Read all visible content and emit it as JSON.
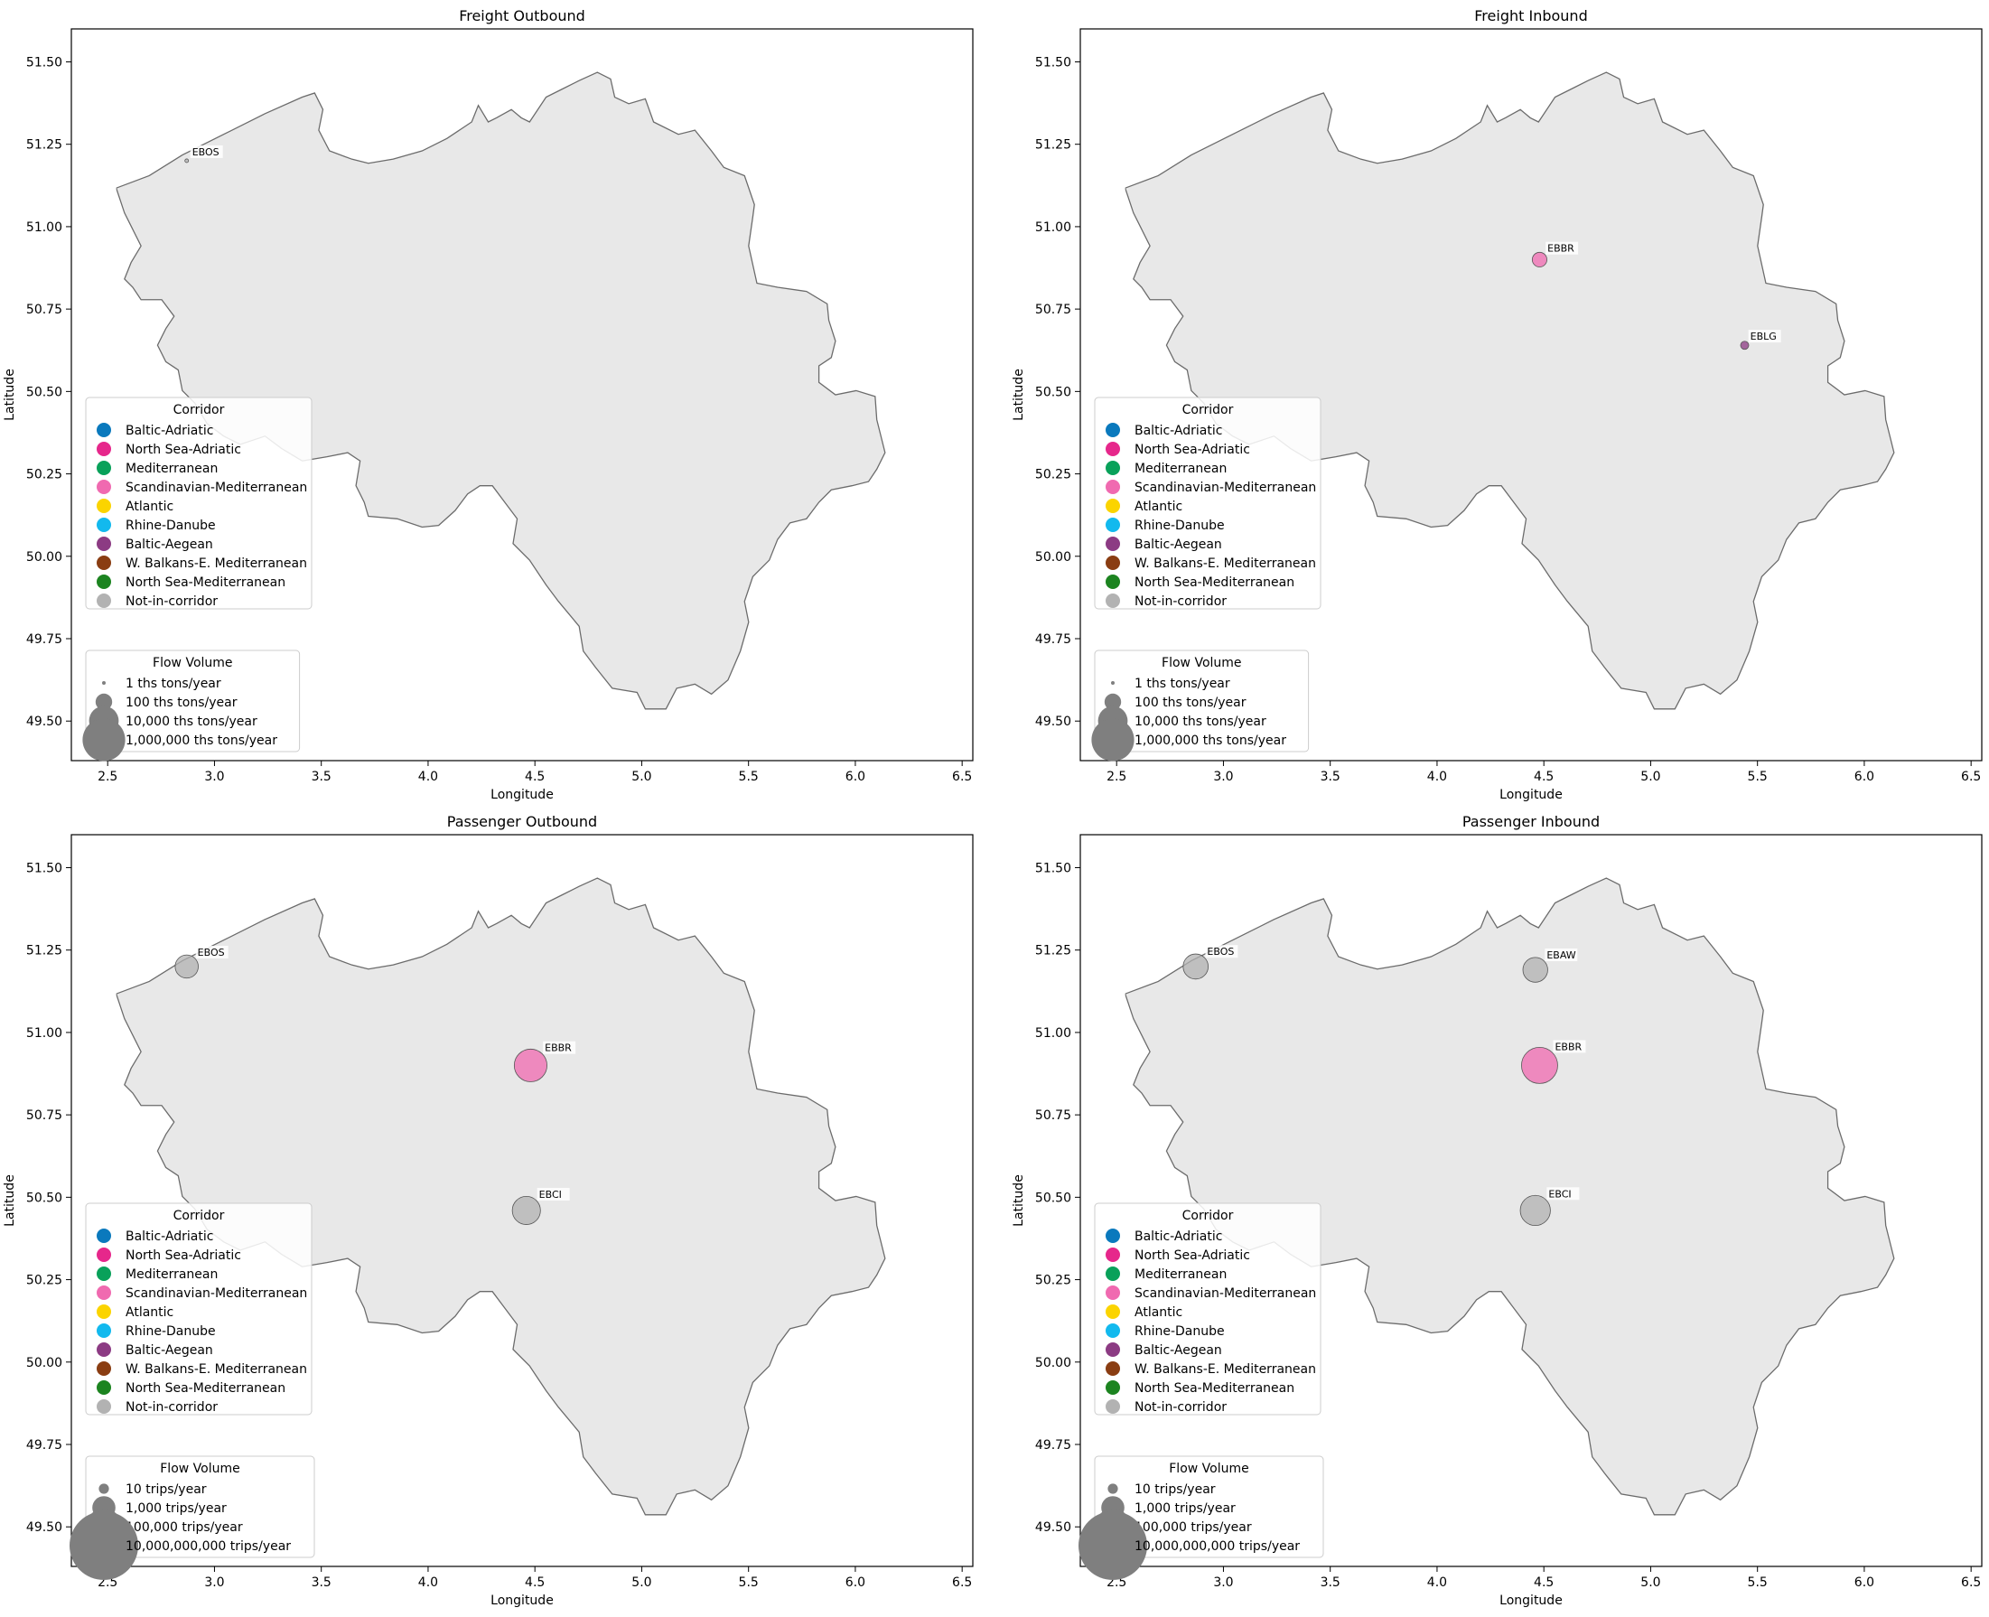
{
  "figure": {
    "xlabel": "Longitude",
    "ylabel": "Latitude",
    "x_ticks": [
      "2.5",
      "3.0",
      "3.5",
      "4.0",
      "4.5",
      "5.0",
      "5.5",
      "6.0",
      "6.5"
    ],
    "y_ticks": [
      "49.50",
      "49.75",
      "50.00",
      "50.25",
      "50.50",
      "50.75",
      "51.00",
      "51.25",
      "51.50"
    ],
    "corridor_legend_title": "Corridor",
    "flow_legend_title": "Flow Volume",
    "map_fill": "#e8e8e8",
    "map_stroke": "#6b6b6b"
  },
  "corridors": [
    {
      "name": "Baltic-Adriatic",
      "color": "#0a79bd"
    },
    {
      "name": "North Sea-Adriatic",
      "color": "#e6278b"
    },
    {
      "name": "Mediterranean",
      "color": "#09a15a"
    },
    {
      "name": "Scandinavian-Mediterranean",
      "color": "#f06ab0"
    },
    {
      "name": "Atlantic",
      "color": "#fbd400"
    },
    {
      "name": "Rhine-Danube",
      "color": "#12b9ee"
    },
    {
      "name": "Baltic-Aegean",
      "color": "#8c3b83"
    },
    {
      "name": "W. Balkans-E. Mediterranean",
      "color": "#8a3d12"
    },
    {
      "name": "North Sea-Mediterranean",
      "color": "#1c8420"
    },
    {
      "name": "Not-in-corridor",
      "color": "#b2b2b2"
    }
  ],
  "chart_data": [
    {
      "type": "scatter",
      "title": "Freight Outbound",
      "xlabel": "Longitude",
      "ylabel": "Latitude",
      "xlim": [
        2.33,
        6.55
      ],
      "ylim": [
        49.38,
        51.6
      ],
      "points": [
        {
          "label": "EBOS",
          "lon": 2.87,
          "lat": 51.2,
          "corridor": "Not-in-corridor",
          "flow_volume": 1
        }
      ],
      "size_legend": [
        {
          "label": "1 ths tons/year",
          "value": 1
        },
        {
          "label": "100 ths tons/year",
          "value": 100
        },
        {
          "label": "10,000 ths tons/year",
          "value": 10000
        },
        {
          "label": "1,000,000 ths tons/year",
          "value": 1000000
        }
      ]
    },
    {
      "type": "scatter",
      "title": "Freight Inbound",
      "xlabel": "Longitude",
      "ylabel": "Latitude",
      "xlim": [
        2.33,
        6.55
      ],
      "ylim": [
        49.38,
        51.6
      ],
      "points": [
        {
          "label": "EBBR",
          "lon": 4.48,
          "lat": 50.9,
          "corridor": "Scandinavian-Mediterranean",
          "flow_volume": 50
        },
        {
          "label": "EBLG",
          "lon": 5.44,
          "lat": 50.64,
          "corridor": "Baltic-Aegean",
          "flow_volume": 5
        }
      ],
      "size_legend": [
        {
          "label": "1 ths tons/year",
          "value": 1
        },
        {
          "label": "100 ths tons/year",
          "value": 100
        },
        {
          "label": "10,000 ths tons/year",
          "value": 10000
        },
        {
          "label": "1,000,000 ths tons/year",
          "value": 1000000
        }
      ]
    },
    {
      "type": "scatter",
      "title": "Passenger Outbound",
      "xlabel": "Longitude",
      "ylabel": "Latitude",
      "xlim": [
        2.33,
        6.55
      ],
      "ylim": [
        49.38,
        51.6
      ],
      "points": [
        {
          "label": "EBOS",
          "lon": 2.87,
          "lat": 51.2,
          "corridor": "Not-in-corridor",
          "flow_volume": 1000
        },
        {
          "label": "EBBR",
          "lon": 4.48,
          "lat": 50.9,
          "corridor": "Scandinavian-Mediterranean",
          "flow_volume": 30000
        },
        {
          "label": "EBCI",
          "lon": 4.46,
          "lat": 50.46,
          "corridor": "Not-in-corridor",
          "flow_volume": 6000
        }
      ],
      "size_legend": [
        {
          "label": "10 trips/year",
          "value": 10
        },
        {
          "label": "1,000 trips/year",
          "value": 1000
        },
        {
          "label": "100,000 trips/year",
          "value": 100000
        },
        {
          "label": "10,000,000,000 trips/year",
          "value": 10000000000
        }
      ]
    },
    {
      "type": "scatter",
      "title": "Passenger Inbound",
      "xlabel": "Longitude",
      "ylabel": "Latitude",
      "xlim": [
        2.33,
        6.55
      ],
      "ylim": [
        49.38,
        51.6
      ],
      "points": [
        {
          "label": "EBOS",
          "lon": 2.87,
          "lat": 51.2,
          "corridor": "Not-in-corridor",
          "flow_volume": 2000
        },
        {
          "label": "EBAW",
          "lon": 4.46,
          "lat": 51.19,
          "corridor": "Not-in-corridor",
          "flow_volume": 1800
        },
        {
          "label": "EBBR",
          "lon": 4.48,
          "lat": 50.9,
          "corridor": "Scandinavian-Mediterranean",
          "flow_volume": 100000
        },
        {
          "label": "EBCI",
          "lon": 4.46,
          "lat": 50.46,
          "corridor": "Not-in-corridor",
          "flow_volume": 12000
        }
      ],
      "size_legend": [
        {
          "label": "10 trips/year",
          "value": 10
        },
        {
          "label": "1,000 trips/year",
          "value": 1000
        },
        {
          "label": "100,000 trips/year",
          "value": 100000
        },
        {
          "label": "10,000,000,000 trips/year",
          "value": 10000000000
        }
      ]
    }
  ]
}
